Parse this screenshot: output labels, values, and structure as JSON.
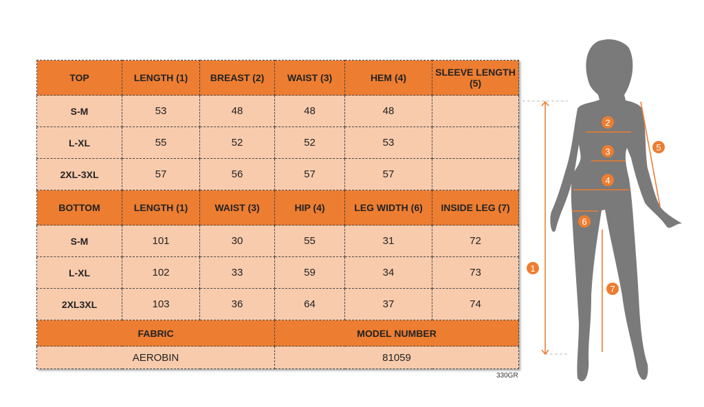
{
  "top": {
    "headers": [
      "TOP",
      "LENGTH (1)",
      "BREAST (2)",
      "WAIST (3)",
      "HEM (4)",
      "SLEEVE LENGTH (5)"
    ],
    "rows": [
      [
        "S-M",
        "53",
        "48",
        "48",
        "48",
        ""
      ],
      [
        "L-XL",
        "55",
        "52",
        "52",
        "53",
        ""
      ],
      [
        "2XL-3XL",
        "57",
        "56",
        "57",
        "57",
        ""
      ]
    ]
  },
  "bottom": {
    "headers": [
      "BOTTOM",
      "LENGTH (1)",
      "WAIST (3)",
      "HIP (4)",
      "LEG WIDTH (6)",
      "INSIDE LEG (7)"
    ],
    "rows": [
      [
        "S-M",
        "101",
        "30",
        "55",
        "31",
        "72"
      ],
      [
        "L-XL",
        "102",
        "33",
        "59",
        "34",
        "73"
      ],
      [
        "2XL3XL",
        "103",
        "36",
        "64",
        "37",
        "74"
      ]
    ]
  },
  "footer": {
    "fabric_label": "FABRIC",
    "model_label": "MODEL NUMBER",
    "fabric": "AEROBIN",
    "model": "81059"
  },
  "code": "330GR",
  "figure": {
    "markers": [
      "1",
      "2",
      "3",
      "4",
      "5",
      "6",
      "7"
    ]
  },
  "colors": {
    "header": "#ED7D31",
    "cell": "#F8CBAD",
    "silhouette": "#7a7a7a"
  }
}
